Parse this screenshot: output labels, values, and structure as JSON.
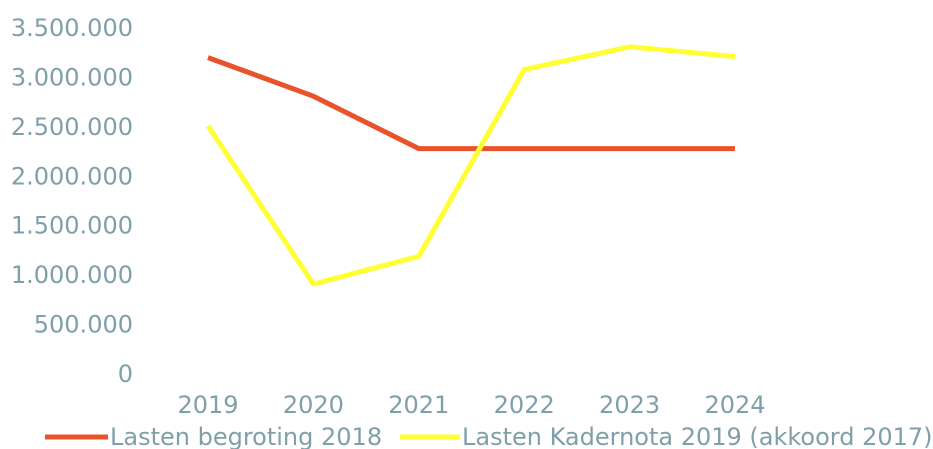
{
  "chart_data": {
    "type": "line",
    "title": "",
    "xlabel": "",
    "ylabel": "",
    "categories": [
      "2019",
      "2020",
      "2021",
      "2022",
      "2023",
      "2024"
    ],
    "ylim": [
      0,
      3500000
    ],
    "y_ticks": [
      {
        "value": 3500000,
        "label": "3.500.000"
      },
      {
        "value": 3000000,
        "label": "3.000.000"
      },
      {
        "value": 2500000,
        "label": "2.500.000"
      },
      {
        "value": 2000000,
        "label": "2.000.000"
      },
      {
        "value": 1500000,
        "label": "1.500.000"
      },
      {
        "value": 1000000,
        "label": "1.000.000"
      },
      {
        "value": 500000,
        "label": "500.000"
      },
      {
        "value": 0,
        "label": "0"
      }
    ],
    "grid": false,
    "legend_position": "bottom",
    "series": [
      {
        "name": "Lasten begroting 2018",
        "color": "#e8532a",
        "values": [
          3190000,
          2800000,
          2270000,
          2270000,
          2270000,
          2270000
        ]
      },
      {
        "name": "Lasten Kadernota 2019 (akkoord 2017)",
        "color": "#ffff33",
        "values": [
          2500000,
          900000,
          1180000,
          3070000,
          3300000,
          3200000
        ]
      }
    ]
  }
}
